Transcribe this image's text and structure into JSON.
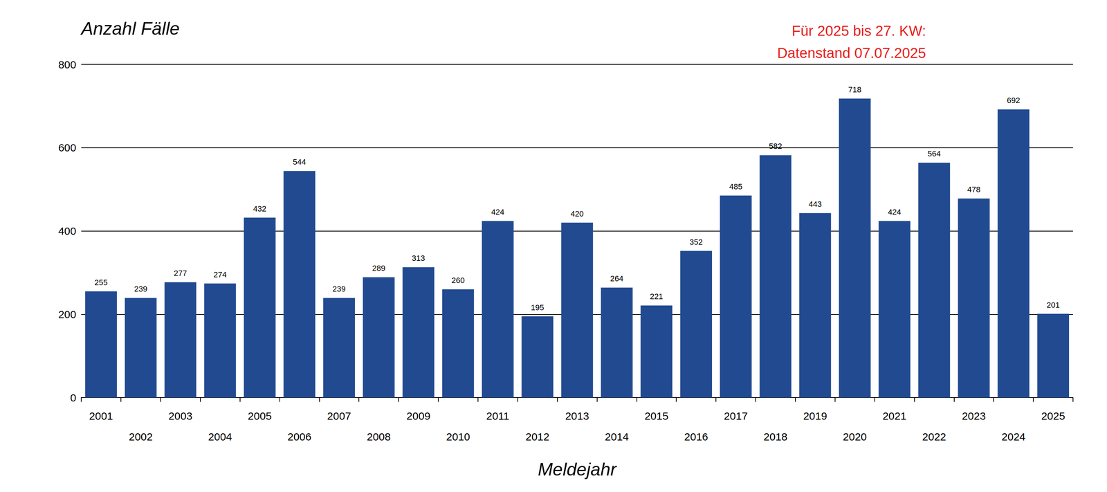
{
  "chart_data": {
    "type": "bar",
    "y_label": "Anzahl Fälle",
    "x_label": "Meldejahr",
    "annotation": [
      "Für 2025 bis 27. KW:",
      "Datenstand 07.07.2025"
    ],
    "categories": [
      "2001",
      "2002",
      "2003",
      "2004",
      "2005",
      "2006",
      "2007",
      "2008",
      "2009",
      "2010",
      "2011",
      "2012",
      "2013",
      "2014",
      "2015",
      "2016",
      "2017",
      "2018",
      "2019",
      "2020",
      "2021",
      "2022",
      "2023",
      "2024",
      "2025"
    ],
    "values": [
      255,
      239,
      277,
      274,
      432,
      544,
      239,
      289,
      313,
      260,
      424,
      195,
      420,
      264,
      221,
      352,
      485,
      582,
      443,
      718,
      424,
      564,
      478,
      692,
      201
    ],
    "color": "#214a91",
    "ylim": [
      0,
      800
    ],
    "yticks": [
      0,
      200,
      400,
      600,
      800
    ],
    "grid": true,
    "data_labels": true
  }
}
